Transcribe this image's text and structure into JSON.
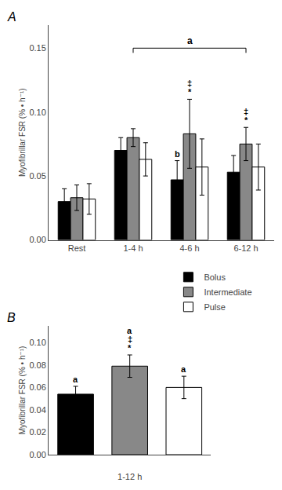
{
  "chart_data": [
    {
      "type": "bar",
      "panel_label": "A",
      "categories": [
        "Rest",
        "1-4 h",
        "4-6 h",
        "6-12 h"
      ],
      "series": [
        {
          "name": "Bolus",
          "color": "#000000",
          "values": [
            0.03,
            0.07,
            0.047,
            0.053
          ],
          "errors": [
            0.01,
            0.01,
            0.015,
            0.013
          ]
        },
        {
          "name": "Intermediate",
          "color": "#888888",
          "values": [
            0.033,
            0.08,
            0.083,
            0.075
          ],
          "errors": [
            0.01,
            0.007,
            0.027,
            0.013
          ]
        },
        {
          "name": "Pulse",
          "color": "#ffffff",
          "values": [
            0.032,
            0.063,
            0.057,
            0.057
          ],
          "errors": [
            0.012,
            0.013,
            0.022,
            0.018
          ]
        }
      ],
      "ylabel": "Myofibrillar FSR (% • h⁻¹)",
      "ylim": [
        0,
        0.168
      ],
      "yticks": [
        {
          "value": 0.0,
          "label": "0.00"
        },
        {
          "value": 0.05,
          "label": "0.05"
        },
        {
          "value": 0.1,
          "label": "0.10"
        },
        {
          "value": 0.15,
          "label": "0.15"
        }
      ],
      "grid": false,
      "annotations": [
        {
          "text": "a",
          "x": [
            1,
            3
          ],
          "series": "Intermediate",
          "y": 0.15
        },
        {
          "text": "*",
          "x": 2,
          "series": "Intermediate"
        },
        {
          "text": "‡",
          "x": 2,
          "series": "Intermediate"
        },
        {
          "text": "b",
          "x": 2,
          "series": "Bolus"
        },
        {
          "text": "*",
          "x": 3,
          "series": "Intermediate"
        },
        {
          "text": "‡",
          "x": 3,
          "series": "Intermediate"
        }
      ]
    },
    {
      "type": "bar",
      "panel_label": "B",
      "categories": [
        "Bolus",
        "Intermediate",
        "Pulse"
      ],
      "values": [
        0.054,
        0.079,
        0.06
      ],
      "errors": [
        0.007,
        0.01,
        0.01
      ],
      "colors": [
        "#000000",
        "#888888",
        "#ffffff"
      ],
      "xlabel": "1-12 h",
      "ylabel": "Myofibrillar FSR (% • h⁻¹)",
      "ylim": [
        0,
        0.115
      ],
      "yticks": [
        {
          "value": 0.0,
          "label": "0.00"
        },
        {
          "value": 0.02,
          "label": "0.02"
        },
        {
          "value": 0.04,
          "label": "0.04"
        },
        {
          "value": 0.06,
          "label": "0.06"
        },
        {
          "value": 0.08,
          "label": "0.08"
        },
        {
          "value": 0.1,
          "label": "0.10"
        }
      ],
      "tick_labels": "y",
      "grid": false,
      "annotations": [
        {
          "text": "a",
          "x": 0
        },
        {
          "text": "*",
          "x": 1
        },
        {
          "text": "‡",
          "x": 1
        },
        {
          "text": "a",
          "x": 1
        },
        {
          "text": "a",
          "x": 2
        }
      ]
    }
  ]
}
